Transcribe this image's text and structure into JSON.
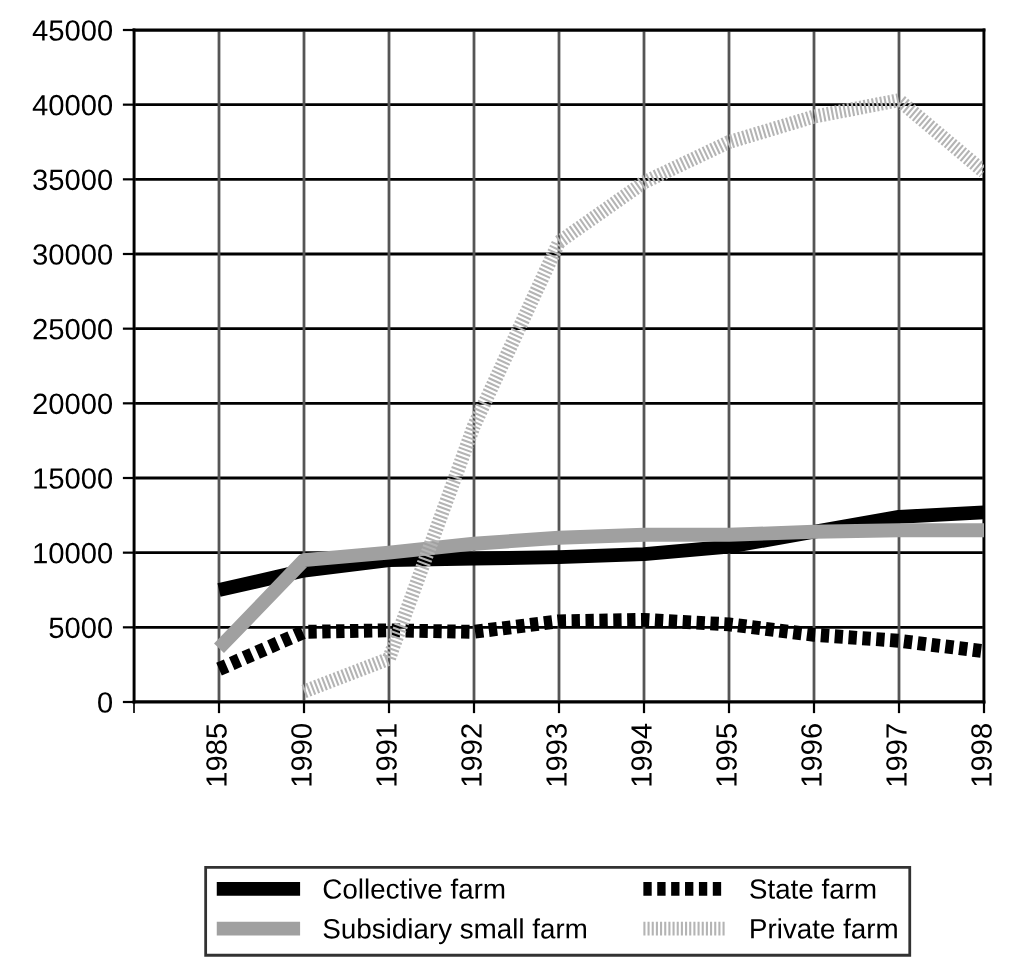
{
  "chart_data": {
    "type": "line",
    "categories": [
      "1985",
      "1990",
      "1991",
      "1992",
      "1993",
      "1994",
      "1995",
      "1996",
      "1997",
      "1998"
    ],
    "series": [
      {
        "name": "Collective farm",
        "color": "#000000",
        "line_style": "solid",
        "values": [
          7500,
          8800,
          9500,
          9600,
          9700,
          9900,
          10400,
          11400,
          12400,
          12700
        ]
      },
      {
        "name": "Subsidiary small farm",
        "color": "#a0a0a0",
        "line_style": "solid",
        "values": [
          3600,
          9500,
          10000,
          10600,
          11000,
          11200,
          11200,
          11400,
          11500,
          11500
        ]
      },
      {
        "name": "State farm",
        "color": "#000000",
        "line_style": "dotted",
        "values": [
          2200,
          4700,
          4800,
          4700,
          5400,
          5500,
          5200,
          4500,
          4100,
          3400
        ]
      },
      {
        "name": "Private farm",
        "color": "#b4b4b4",
        "line_style": "dotted",
        "values": [
          null,
          700,
          2900,
          18500,
          30800,
          34800,
          37500,
          39200,
          40300,
          35500
        ]
      }
    ],
    "ylim": [
      0,
      45000
    ],
    "yticks": [
      0,
      5000,
      10000,
      15000,
      20000,
      25000,
      30000,
      35000,
      40000,
      45000
    ],
    "grid": true,
    "legend": "bottom",
    "marker": "none"
  }
}
